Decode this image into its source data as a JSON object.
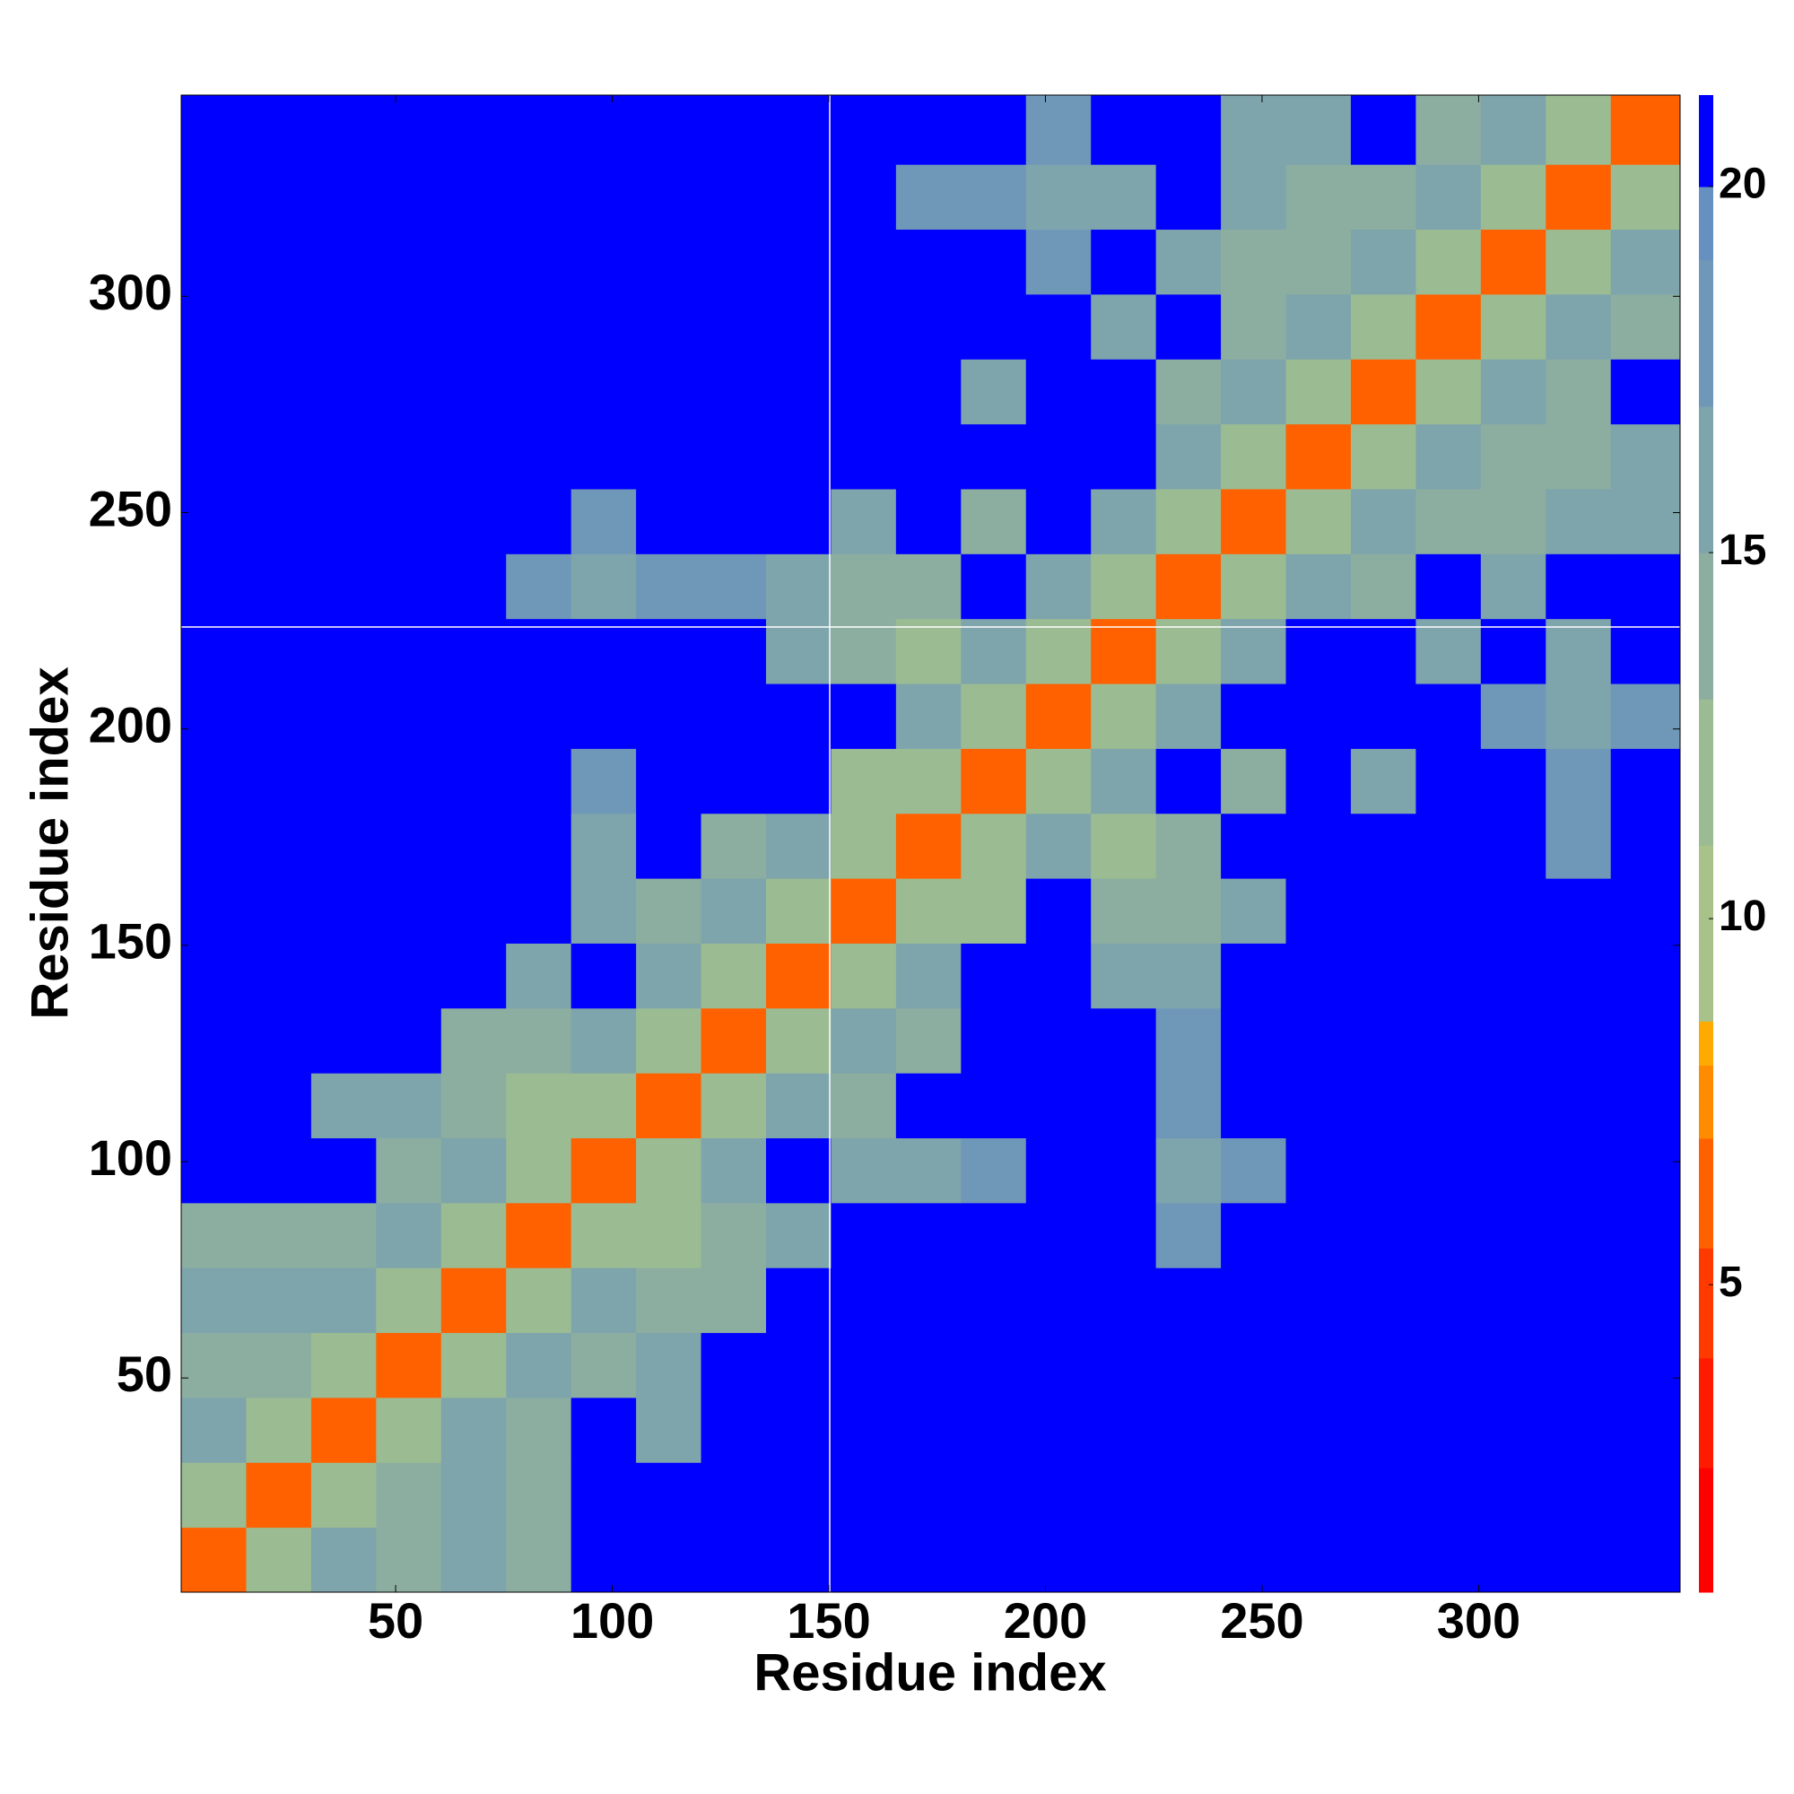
{
  "chart_data": {
    "type": "heatmap",
    "xlabel": "Residue index",
    "ylabel": "Residue index",
    "bins": [
      0.5,
      15.5,
      30.5,
      45.5,
      60.5,
      75.5,
      90.5,
      105.5,
      120.5,
      135.5,
      150.5,
      165.5,
      180.5,
      195.5,
      210.5,
      225.5,
      240.5,
      255.5,
      270.5,
      285.5,
      300.5,
      315.5,
      330.5,
      346.5
    ],
    "z": [
      [
        6,
        11,
        15,
        14,
        15,
        13,
        21,
        21,
        21,
        21,
        21,
        21,
        21,
        21,
        21,
        21,
        21,
        21,
        21,
        21,
        21,
        21,
        21
      ],
      [
        11,
        6,
        11,
        13,
        15,
        13,
        21,
        21,
        21,
        21,
        21,
        21,
        21,
        21,
        21,
        21,
        21,
        21,
        21,
        21,
        21,
        21,
        21
      ],
      [
        15,
        11,
        6,
        11,
        15,
        14,
        21,
        16,
        21,
        21,
        21,
        21,
        21,
        21,
        21,
        21,
        21,
        21,
        21,
        21,
        21,
        21,
        21
      ],
      [
        14,
        13,
        11,
        6,
        11,
        15,
        14,
        15,
        21,
        21,
        21,
        21,
        21,
        21,
        21,
        21,
        21,
        21,
        21,
        21,
        21,
        21,
        21
      ],
      [
        15,
        15,
        15,
        11,
        6,
        11,
        15,
        13,
        13,
        21,
        21,
        21,
        21,
        21,
        21,
        21,
        21,
        21,
        21,
        21,
        21,
        21,
        21
      ],
      [
        13,
        13,
        14,
        15,
        11,
        6,
        11,
        12,
        14,
        16,
        21,
        21,
        21,
        21,
        21,
        18,
        21,
        21,
        21,
        21,
        21,
        21,
        21
      ],
      [
        21,
        21,
        21,
        14,
        15,
        11,
        6,
        11,
        15,
        21,
        15,
        16,
        17,
        21,
        21,
        16,
        18,
        21,
        21,
        21,
        21,
        21,
        21
      ],
      [
        21,
        21,
        16,
        15,
        13,
        12,
        11,
        6,
        11,
        15,
        14,
        21,
        21,
        21,
        21,
        17,
        21,
        21,
        21,
        21,
        21,
        21,
        21
      ],
      [
        21,
        21,
        21,
        21,
        13,
        14,
        15,
        11,
        6,
        11,
        15,
        13,
        21,
        21,
        21,
        18,
        21,
        21,
        21,
        21,
        21,
        21,
        21
      ],
      [
        21,
        21,
        21,
        21,
        21,
        16,
        21,
        15,
        11,
        6,
        11,
        15,
        21,
        21,
        15,
        15,
        21,
        21,
        21,
        21,
        21,
        21,
        21
      ],
      [
        21,
        21,
        21,
        21,
        21,
        21,
        15,
        14,
        15,
        11,
        6,
        11,
        12,
        21,
        13,
        14,
        16,
        21,
        21,
        21,
        21,
        21,
        21
      ],
      [
        21,
        21,
        21,
        21,
        21,
        21,
        16,
        21,
        13,
        15,
        11,
        6,
        11,
        15,
        12,
        13,
        21,
        21,
        21,
        21,
        21,
        18,
        21
      ],
      [
        21,
        21,
        21,
        21,
        21,
        21,
        17,
        21,
        21,
        21,
        12,
        11,
        6,
        11,
        15,
        21,
        14,
        21,
        16,
        21,
        21,
        17,
        21
      ],
      [
        21,
        21,
        21,
        21,
        21,
        21,
        21,
        21,
        21,
        21,
        21,
        15,
        11,
        6,
        11,
        15,
        21,
        21,
        21,
        21,
        17,
        16,
        17
      ],
      [
        21,
        21,
        21,
        21,
        21,
        21,
        21,
        21,
        21,
        15,
        13,
        12,
        15,
        11,
        6,
        11,
        15,
        21,
        21,
        16,
        21,
        15,
        21
      ],
      [
        21,
        21,
        21,
        21,
        21,
        18,
        16,
        17,
        18,
        15,
        14,
        13,
        21,
        15,
        11,
        6,
        11,
        15,
        14,
        21,
        16,
        21,
        21
      ],
      [
        21,
        21,
        21,
        21,
        21,
        21,
        18,
        21,
        21,
        21,
        16,
        21,
        14,
        21,
        15,
        11,
        6,
        11,
        15,
        13,
        13,
        15,
        16
      ],
      [
        21,
        21,
        21,
        21,
        21,
        21,
        21,
        21,
        21,
        21,
        21,
        21,
        21,
        21,
        21,
        15,
        11,
        6,
        11,
        15,
        14,
        13,
        15
      ],
      [
        21,
        21,
        21,
        21,
        21,
        21,
        21,
        21,
        21,
        21,
        21,
        21,
        16,
        21,
        21,
        14,
        15,
        11,
        6,
        11,
        15,
        14,
        21
      ],
      [
        21,
        21,
        21,
        21,
        21,
        21,
        21,
        21,
        21,
        21,
        21,
        21,
        21,
        21,
        16,
        21,
        13,
        15,
        11,
        6,
        11,
        15,
        13
      ],
      [
        21,
        21,
        21,
        21,
        21,
        21,
        21,
        21,
        21,
        21,
        21,
        21,
        21,
        17,
        21,
        16,
        13,
        14,
        15,
        11,
        6,
        11,
        15
      ],
      [
        21,
        21,
        21,
        21,
        21,
        21,
        21,
        21,
        21,
        21,
        21,
        18,
        17,
        16,
        15,
        21,
        15,
        13,
        14,
        15,
        11,
        6,
        11
      ],
      [
        21,
        21,
        21,
        21,
        21,
        21,
        21,
        21,
        21,
        21,
        21,
        21,
        21,
        17,
        21,
        21,
        16,
        15,
        21,
        13,
        15,
        11,
        6
      ]
    ],
    "xlim": [
      0.5,
      346.5
    ],
    "ylim": [
      0.5,
      346.5
    ],
    "xticks": [
      50,
      100,
      150,
      200,
      250,
      300
    ],
    "yticks": [
      50,
      100,
      150,
      200,
      250,
      300
    ],
    "clim": [
      0.8,
      21.25
    ],
    "cticks": [
      5,
      10,
      15,
      20
    ],
    "colorscale": [
      {
        "value": 0.8,
        "color": "#ff0000"
      },
      {
        "value": 2.5,
        "color": "#ff1a00"
      },
      {
        "value": 4,
        "color": "#ff3a00"
      },
      {
        "value": 5.5,
        "color": "#ff6000"
      },
      {
        "value": 7,
        "color": "#ff8c00"
      },
      {
        "value": 8,
        "color": "#ffaa00"
      },
      {
        "value": 8.6,
        "color": "#a9c28a"
      },
      {
        "value": 11,
        "color": "#9bbc92"
      },
      {
        "value": 13,
        "color": "#8caea0"
      },
      {
        "value": 15,
        "color": "#7ea4ac"
      },
      {
        "value": 17,
        "color": "#6f98b8"
      },
      {
        "value": 19,
        "color": "#6590bf"
      },
      {
        "value": 20,
        "color": "#0000ff"
      }
    ]
  }
}
